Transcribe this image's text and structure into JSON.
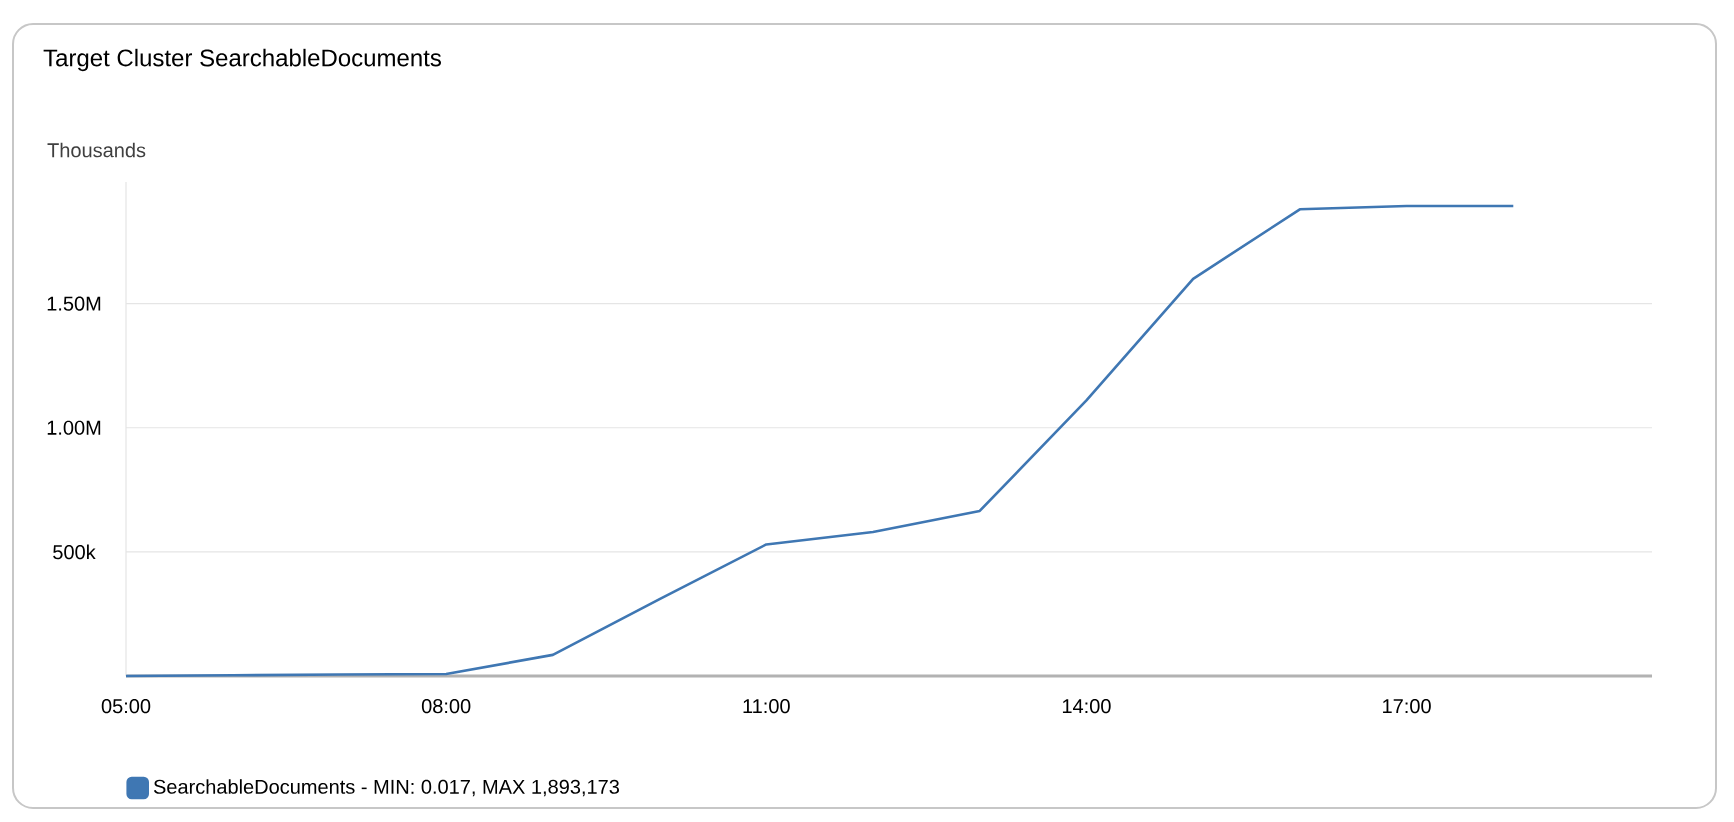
{
  "chart_data": {
    "type": "line",
    "title": "Target Cluster SearchableDocuments",
    "annotations": [
      "Thousands"
    ],
    "x": [
      5,
      6,
      7,
      8,
      9,
      10,
      11,
      12,
      13,
      14,
      15,
      16,
      17,
      18
    ],
    "series": [
      {
        "name": "SearchableDocuments - MIN: 0.017, MAX 1,893,173",
        "color": "#3f77b3",
        "values": [
          0,
          3000,
          6000,
          8000,
          85000,
          310000,
          530000,
          580000,
          665000,
          1110000,
          1600000,
          1880000,
          1893173,
          1893173
        ]
      }
    ],
    "xlim": [
      5,
      19.3
    ],
    "ylim": [
      0,
      1990000
    ],
    "xticks": [
      {
        "value": 5,
        "label": "05:00"
      },
      {
        "value": 8,
        "label": "08:00"
      },
      {
        "value": 11,
        "label": "11:00"
      },
      {
        "value": 14,
        "label": "14:00"
      },
      {
        "value": 17,
        "label": "17:00"
      }
    ],
    "yticks": [
      {
        "value": 500000,
        "label": "500k"
      },
      {
        "value": 1000000,
        "label": "1.00M"
      },
      {
        "value": 1500000,
        "label": "1.50M"
      }
    ],
    "grid": "y",
    "legend": "bottom left",
    "marker": "none",
    "line_style": "solid"
  }
}
